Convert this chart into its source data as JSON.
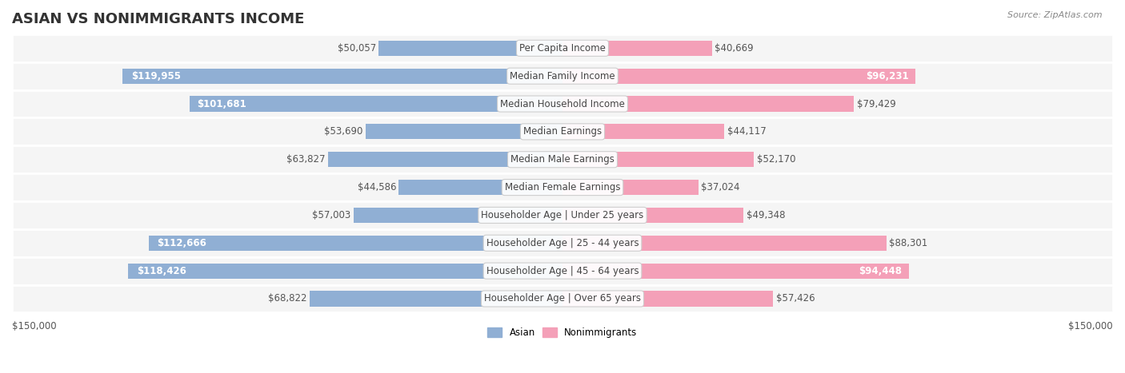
{
  "title": "ASIAN VS NONIMMIGRANTS INCOME",
  "source": "Source: ZipAtlas.com",
  "categories": [
    "Per Capita Income",
    "Median Family Income",
    "Median Household Income",
    "Median Earnings",
    "Median Male Earnings",
    "Median Female Earnings",
    "Householder Age | Under 25 years",
    "Householder Age | 25 - 44 years",
    "Householder Age | 45 - 64 years",
    "Householder Age | Over 65 years"
  ],
  "asian_values": [
    50057,
    119955,
    101681,
    53690,
    63827,
    44586,
    57003,
    112666,
    118426,
    68822
  ],
  "nonimmigrant_values": [
    40669,
    96231,
    79429,
    44117,
    52170,
    37024,
    49348,
    88301,
    94448,
    57426
  ],
  "asian_labels": [
    "$50,057",
    "$119,955",
    "$101,681",
    "$53,690",
    "$63,827",
    "$44,586",
    "$57,003",
    "$112,666",
    "$118,426",
    "$68,822"
  ],
  "nonimmigrant_labels": [
    "$40,669",
    "$96,231",
    "$79,429",
    "$44,117",
    "$52,170",
    "$37,024",
    "$49,348",
    "$88,301",
    "$94,448",
    "$57,426"
  ],
  "max_value": 150000,
  "asian_color": "#90afd4",
  "asian_color_dark": "#6b9dc8",
  "nonimmigrant_color": "#f4a0b8",
  "nonimmigrant_color_dark": "#e8728f",
  "asian_label_threshold": 100000,
  "nonimmigrant_label_threshold": 90000,
  "bar_height": 0.55,
  "row_bg_color": "#f0f0f0",
  "row_bg_alt": "#ffffff",
  "xlabel_left": "$150,000",
  "xlabel_right": "$150,000",
  "legend_asian": "Asian",
  "legend_nonimmigrant": "Nonimmigrants",
  "title_fontsize": 13,
  "label_fontsize": 8.5,
  "axis_fontsize": 8.5,
  "source_fontsize": 8
}
